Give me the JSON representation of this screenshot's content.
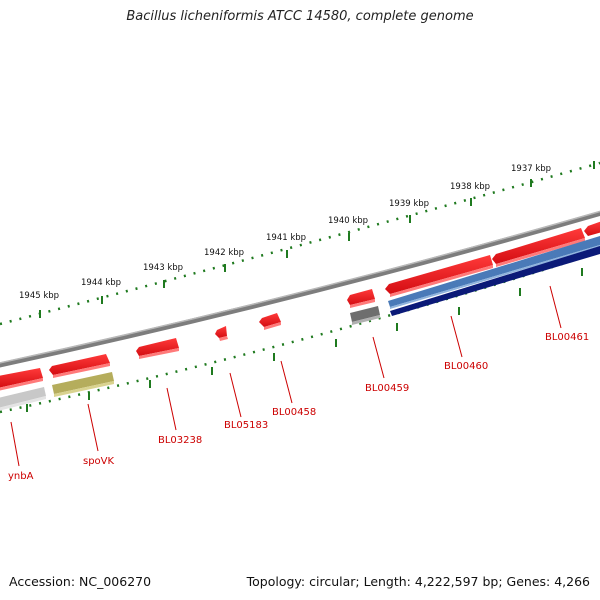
{
  "title": "Bacillus licheniformis ATCC 14580, complete genome",
  "footer": {
    "accession": "Accession: NC_006270",
    "summary": "Topology: circular; Length: 4,222,597 bp; Genes: 4,266"
  },
  "colors": {
    "forward_gene": "#e8141c",
    "reverse_gene_blue": "#4a7ab8",
    "reverse_gene_navy": "#0b1a78",
    "reverse_gene_gray": "#6e6e6e",
    "reverse_gene_lightgray": "#c8c8c8",
    "reverse_gene_olive": "#b5ad5c",
    "backbone": "#8a8a8a",
    "ticks": "#1f7a1f",
    "labels": "#cc0000"
  },
  "scale_labels": [
    "1945 kbp",
    "1944 kbp",
    "1943 kbp",
    "1942 kbp",
    "1941 kbp",
    "1940 kbp",
    "1939 kbp",
    "1938 kbp",
    "1937 kbp"
  ],
  "gene_labels": [
    "ynbA",
    "spoVK",
    "BL03238",
    "BL05183",
    "BL00458",
    "BL00459",
    "BL00460",
    "BL00461"
  ]
}
